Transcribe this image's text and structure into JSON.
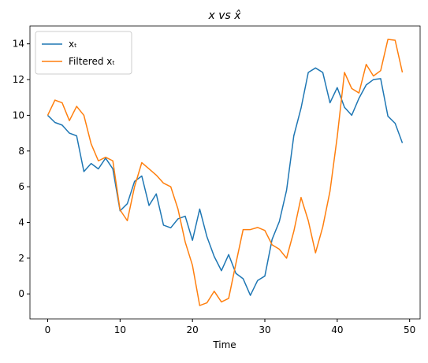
{
  "chart_data": {
    "type": "line",
    "title": "x vs x̂",
    "xlabel": "Time",
    "x": [
      0,
      1,
      2,
      3,
      4,
      5,
      6,
      7,
      8,
      9,
      10,
      11,
      12,
      13,
      14,
      15,
      16,
      17,
      18,
      19,
      20,
      21,
      22,
      23,
      24,
      25,
      26,
      27,
      28,
      29,
      30,
      31,
      32,
      33,
      34,
      35,
      36,
      37,
      38,
      39,
      40,
      41,
      42,
      43,
      44,
      45,
      46,
      47,
      48,
      49
    ],
    "series": [
      {
        "name": "xₜ",
        "color": "#1f77b4",
        "values": [
          10.0,
          9.6,
          9.45,
          9.0,
          8.85,
          6.85,
          7.3,
          7.0,
          7.6,
          7.0,
          4.65,
          5.05,
          6.3,
          6.6,
          4.95,
          5.6,
          3.85,
          3.7,
          4.2,
          4.35,
          3.0,
          4.75,
          3.2,
          2.1,
          1.3,
          2.2,
          1.15,
          0.85,
          -0.08,
          0.75,
          1.0,
          3.05,
          4.05,
          5.8,
          8.85,
          10.4,
          12.4,
          12.65,
          12.4,
          10.7,
          11.55,
          10.45,
          10.0,
          10.95,
          11.7,
          12.0,
          12.05,
          9.95,
          9.55,
          8.45
        ]
      },
      {
        "name": "Filtered xₜ",
        "color": "#ff7f0e",
        "values": [
          10.0,
          10.85,
          10.7,
          9.7,
          10.5,
          10.0,
          8.4,
          7.45,
          7.65,
          7.45,
          4.7,
          4.1,
          6.0,
          7.35,
          7.0,
          6.65,
          6.2,
          6.0,
          4.75,
          2.9,
          1.6,
          -0.65,
          -0.5,
          0.15,
          -0.45,
          -0.25,
          1.7,
          3.6,
          3.6,
          3.72,
          3.55,
          2.75,
          2.5,
          2.0,
          3.5,
          5.4,
          4.1,
          2.3,
          3.75,
          5.75,
          8.8,
          12.4,
          11.5,
          11.25,
          12.85,
          12.2,
          12.5,
          14.25,
          14.2,
          12.4
        ]
      }
    ],
    "xlim": [
      -2.45,
      51.45
    ],
    "xticks": [
      0,
      10,
      20,
      30,
      40,
      50
    ],
    "ylim": [
      -1.4,
      15.0
    ],
    "yticks": [
      0,
      2,
      4,
      6,
      8,
      10,
      12,
      14
    ],
    "legend": "upper left"
  }
}
